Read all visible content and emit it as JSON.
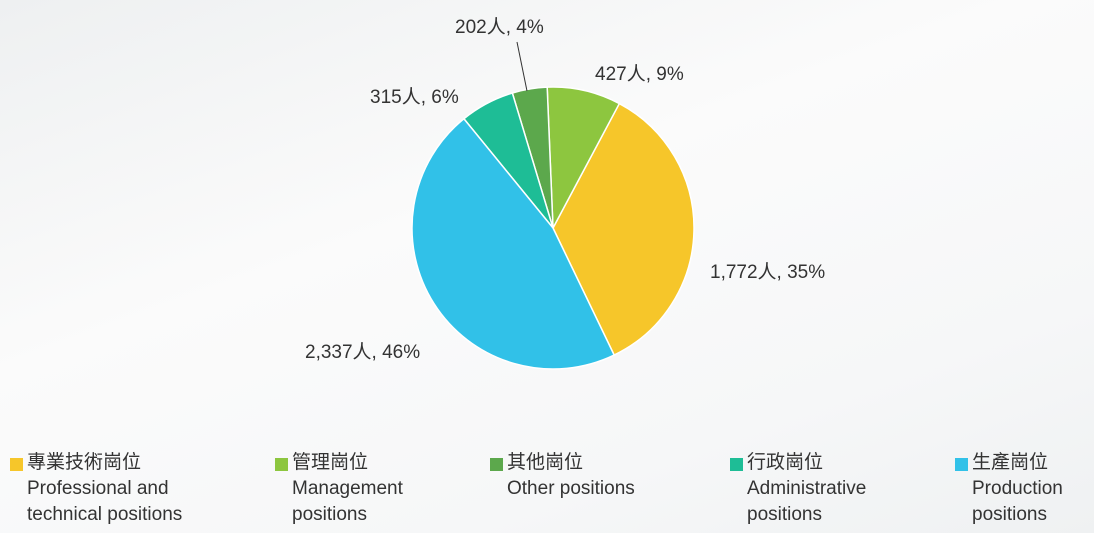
{
  "chart_data": {
    "type": "pie",
    "categories": [
      "專業技術崗位",
      "管理崗位",
      "其他崗位",
      "行政崗位",
      "生產崗位"
    ],
    "categories_en": [
      "Professional and technical positions",
      "Management positions",
      "Other positions",
      "Administrative positions",
      "Production positions"
    ],
    "values": [
      1772,
      427,
      202,
      315,
      2337
    ],
    "value_labels": [
      "1,772人, 35%",
      "427人, 9%",
      "202人, 4%",
      "315人, 6%",
      "2,337人, 46%"
    ],
    "colors": [
      "#f6c62a",
      "#8dc63f",
      "#5ca84c",
      "#1ebd96",
      "#31c1e8"
    ]
  }
}
